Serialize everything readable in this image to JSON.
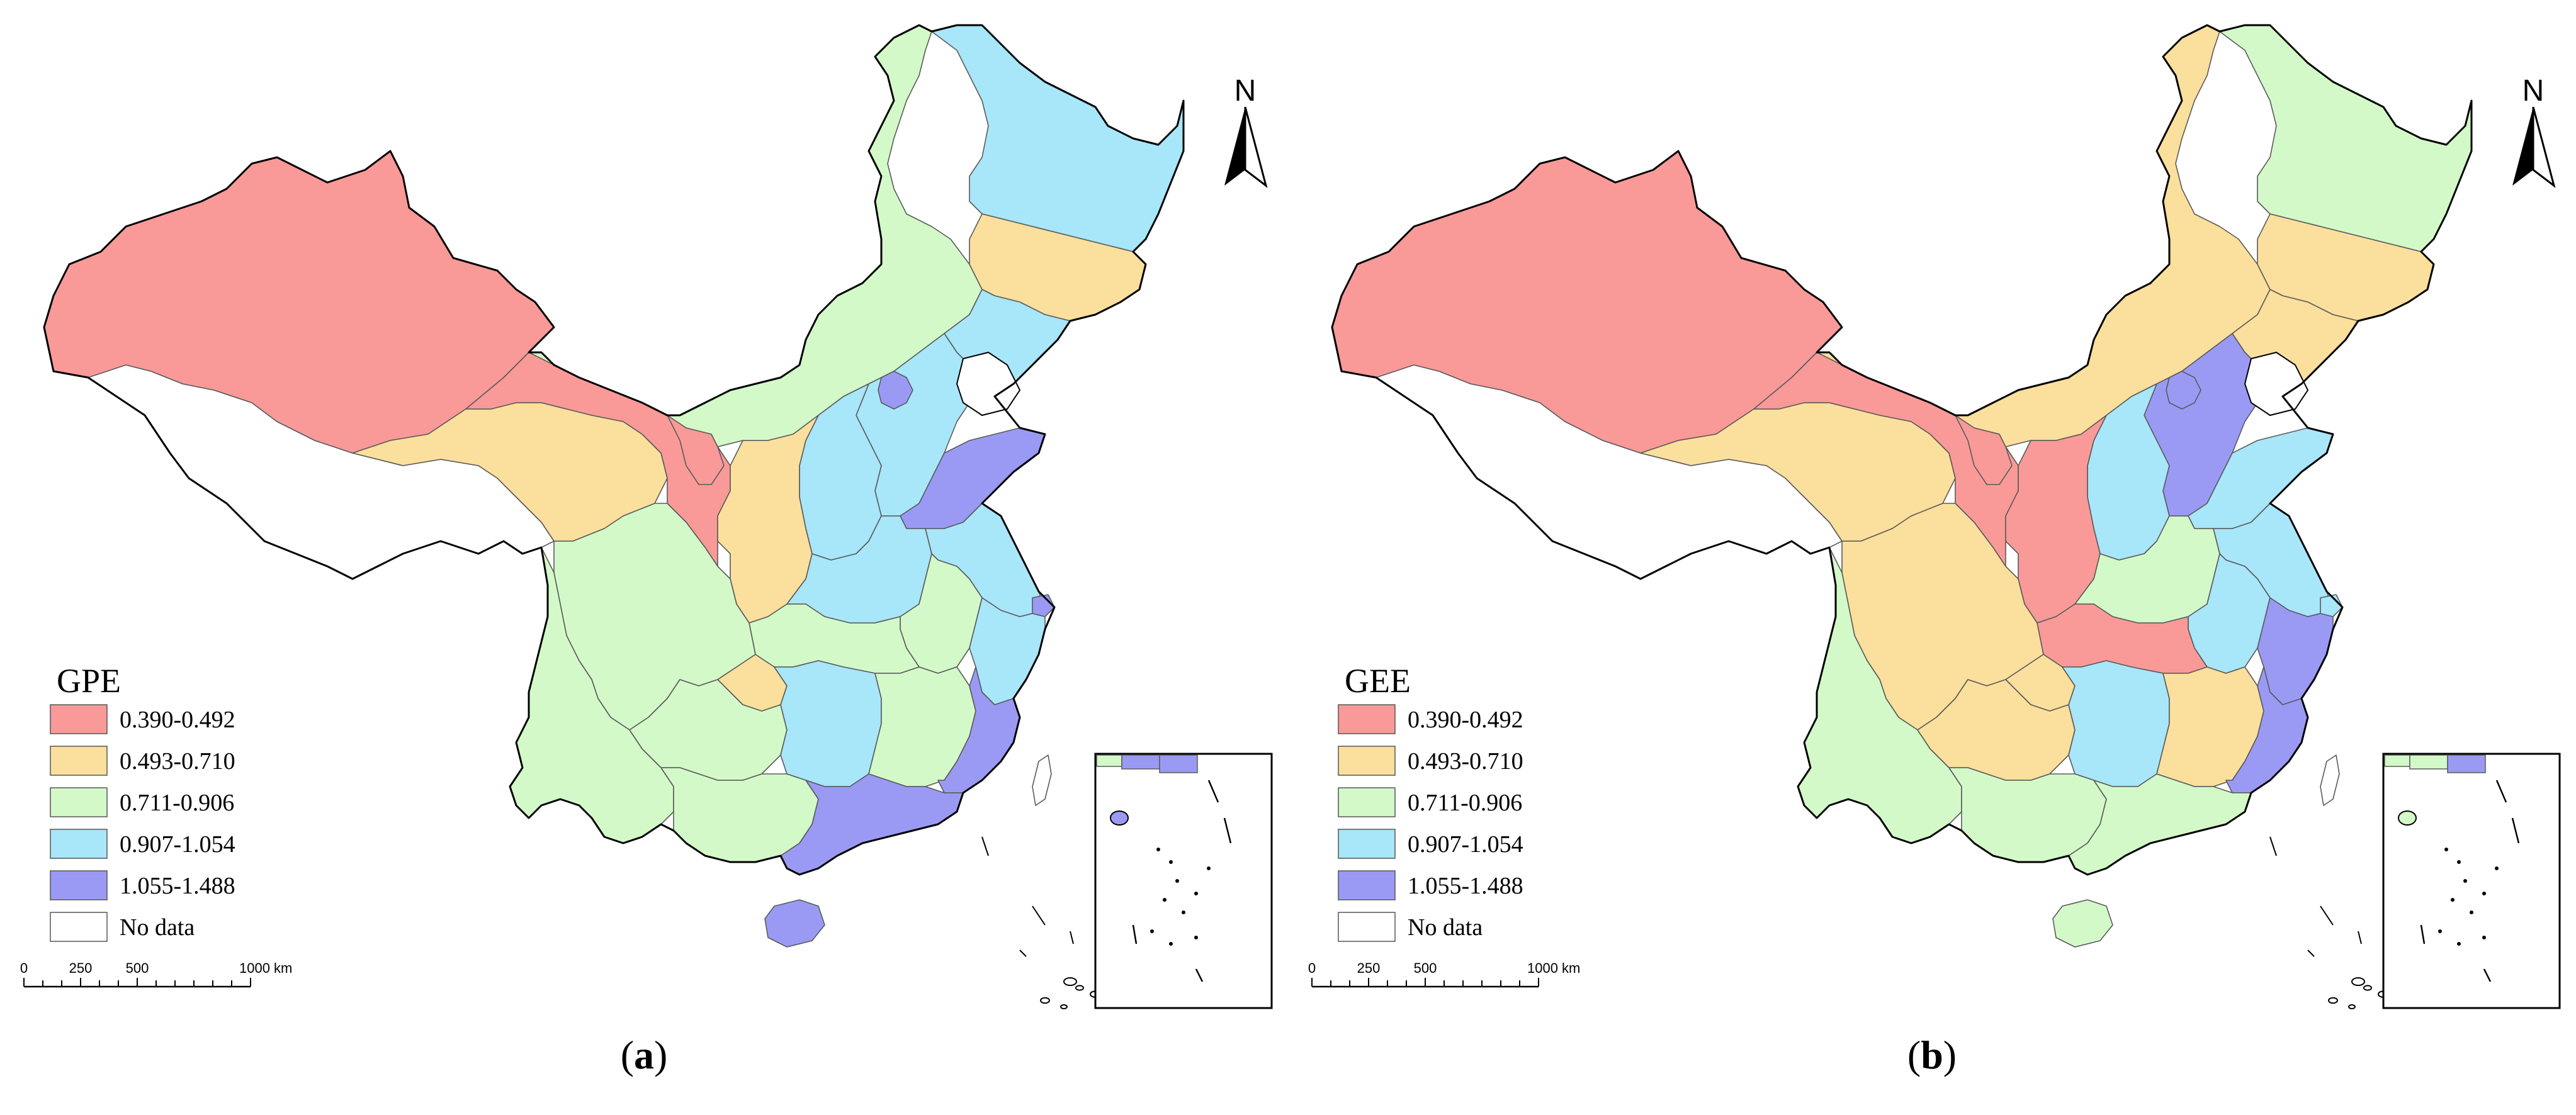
{
  "colors": {
    "c1": "#F99A98",
    "c2": "#FBDF9C",
    "c3": "#D3F9C9",
    "c4": "#A8E6FA",
    "c5": "#9A9AF5",
    "nodata": "#FFFFFF"
  },
  "legend_classes": [
    {
      "key": "c1",
      "label": "0.390-0.492"
    },
    {
      "key": "c2",
      "label": "0.493-0.710"
    },
    {
      "key": "c3",
      "label": "0.711-0.906"
    },
    {
      "key": "c4",
      "label": "0.907-1.054"
    },
    {
      "key": "c5",
      "label": "1.055-1.488"
    },
    {
      "key": "nodata",
      "label": "No data"
    }
  ],
  "scale_bar": {
    "ticks": [
      "0",
      "250",
      "500",
      "1000 km"
    ]
  },
  "north_arrow": {
    "label": "N"
  },
  "panels": [
    {
      "id": "a",
      "caption_letter": "a",
      "legend_title": "GPE",
      "regions": {
        "xinjiang": "c1",
        "tibet": "nodata",
        "qinghai": "c2",
        "gansu": "c1",
        "ningxia": "c1",
        "inner_mongolia": "c3",
        "heilongjiang": "c4",
        "jilin": "c2",
        "liaoning": "c4",
        "beijing_tianjin": "c5",
        "hebei": "c4",
        "shanxi": "c4",
        "shaanxi": "c2",
        "shandong": "c5",
        "henan": "c4",
        "jiangsu": "c4",
        "shanghai": "c5",
        "anhui": "c3",
        "hubei": "c3",
        "sichuan": "c3",
        "chongqing": "c2",
        "yunnan": "c3",
        "guizhou": "c3",
        "hunan": "c4",
        "jiangxi": "c3",
        "zhejiang": "c4",
        "fujian": "c5",
        "guangxi": "c3",
        "guangdong": "c5",
        "hainan": "c5",
        "taiwan": "nodata"
      }
    },
    {
      "id": "b",
      "caption_letter": "b",
      "legend_title": "GEE",
      "regions": {
        "xinjiang": "c1",
        "tibet": "nodata",
        "qinghai": "c2",
        "gansu": "c1",
        "ningxia": "c1",
        "inner_mongolia": "c2",
        "heilongjiang": "c3",
        "jilin": "c2",
        "liaoning": "c2",
        "beijing_tianjin": "c5",
        "hebei": "c5",
        "shanxi": "c4",
        "shaanxi": "c1",
        "shandong": "c4",
        "henan": "c3",
        "jiangsu": "c4",
        "shanghai": "c4",
        "anhui": "c4",
        "hubei": "c1",
        "sichuan": "c2",
        "chongqing": "c2",
        "yunnan": "c3",
        "guizhou": "c2",
        "hunan": "c4",
        "jiangxi": "c2",
        "zhejiang": "c5",
        "fujian": "c5",
        "guangxi": "c3",
        "guangdong": "c3",
        "hainan": "c3",
        "taiwan": "nodata"
      }
    }
  ]
}
